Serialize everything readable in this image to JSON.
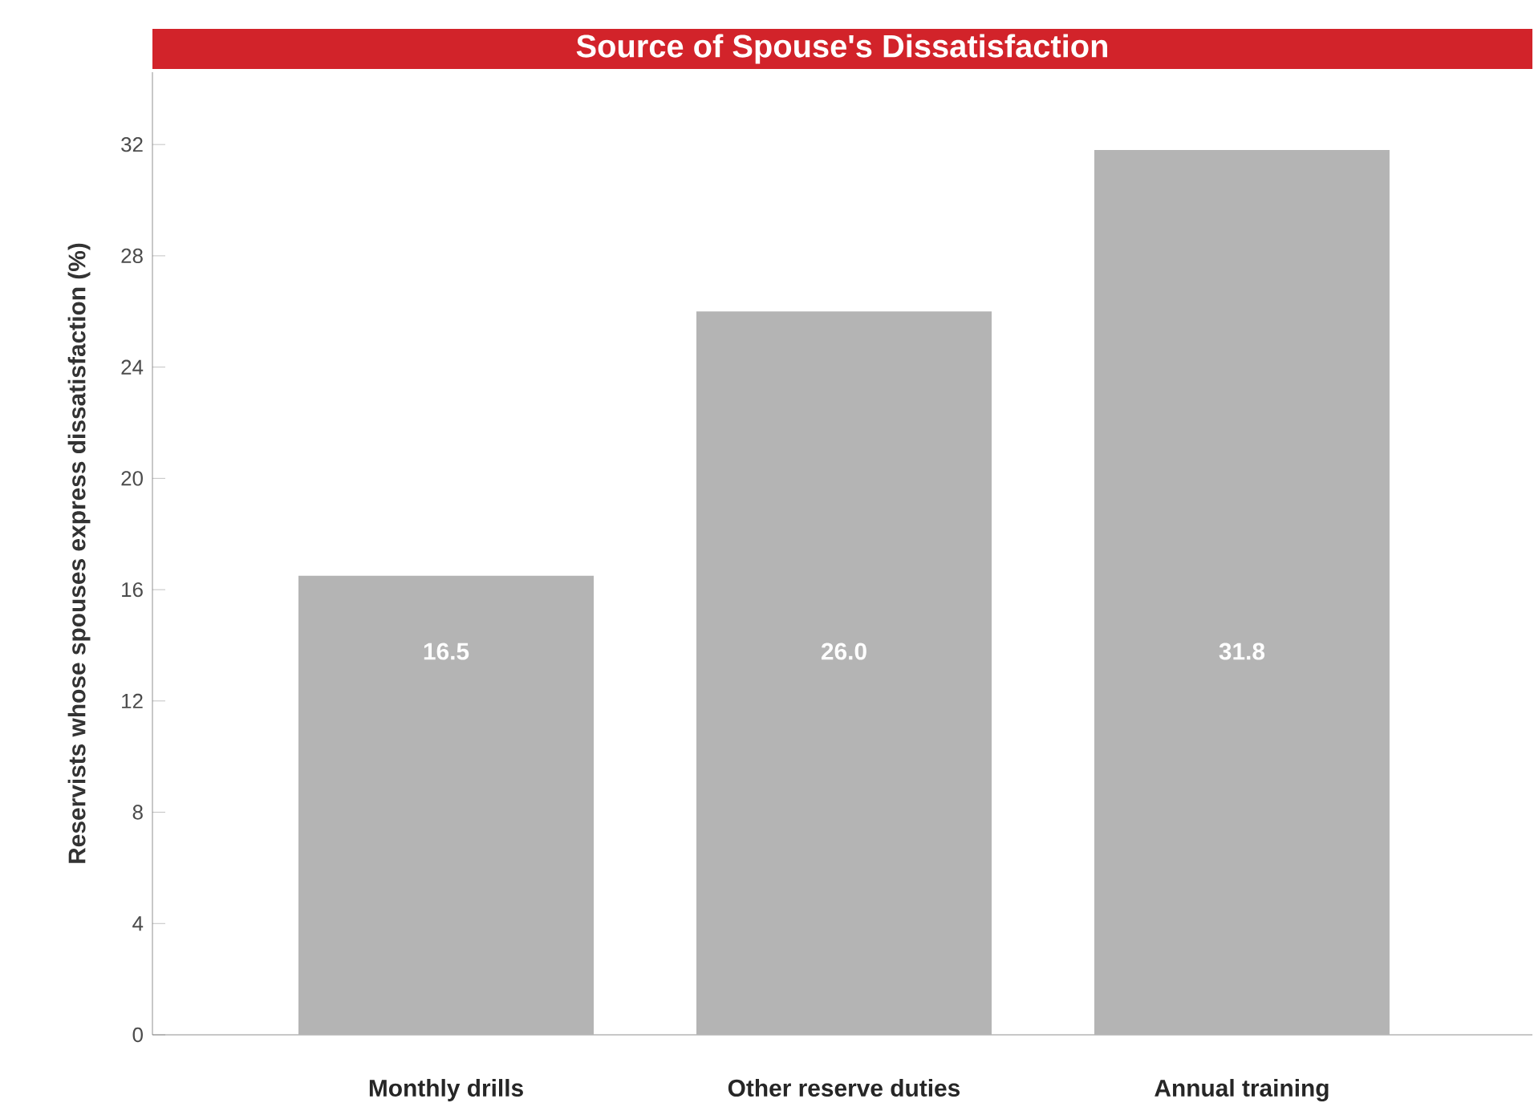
{
  "chart_data": {
    "type": "bar",
    "title": "Source of Spouse's Dissatisfaction",
    "ylabel": "Reservists whose spouses express dissatisfaction (%)",
    "categories": [
      "Monthly drills",
      "Other reserve duties",
      "Annual training"
    ],
    "values": [
      16.5,
      26.0,
      31.8
    ],
    "color": "#b4b4b4",
    "ylim": [
      0,
      34.6
    ],
    "yticks": [
      0,
      4,
      8,
      12,
      16,
      20,
      24,
      28,
      32
    ],
    "grid": false,
    "value_labels": [
      "16.5",
      "26.0",
      "31.8"
    ]
  }
}
